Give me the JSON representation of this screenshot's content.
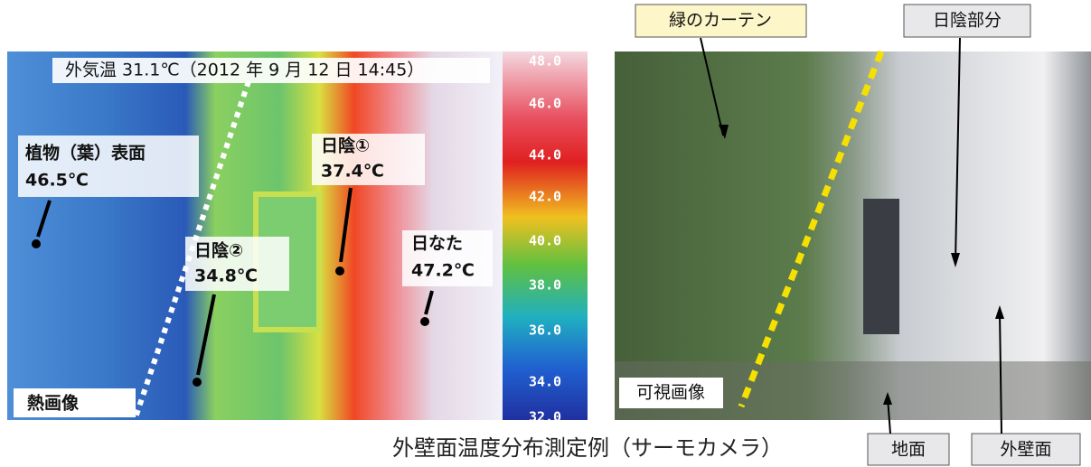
{
  "thermal_image": {
    "header": "外気温 31.1℃（2012 年 9 月 12 日 14:45）",
    "labels": [
      {
        "name": "植物（葉）表面",
        "temp": "46.5℃"
      },
      {
        "name": "日陰①",
        "temp": "37.4℃"
      },
      {
        "name": "日陰②",
        "temp": "34.8℃"
      },
      {
        "name": "日なた",
        "temp": "47.2℃"
      }
    ],
    "corner_label": "熱画像",
    "scale": [
      "48.0",
      "46.0",
      "44.0",
      "42.0",
      "40.0",
      "38.0",
      "36.0",
      "34.0",
      "32.0"
    ]
  },
  "visible_image": {
    "labels": [
      "緑のカーテン",
      "日陰部分",
      "可視画像",
      "地面",
      "外壁面"
    ]
  },
  "caption": "外壁面温度分布測定例（サーモカメラ）"
}
